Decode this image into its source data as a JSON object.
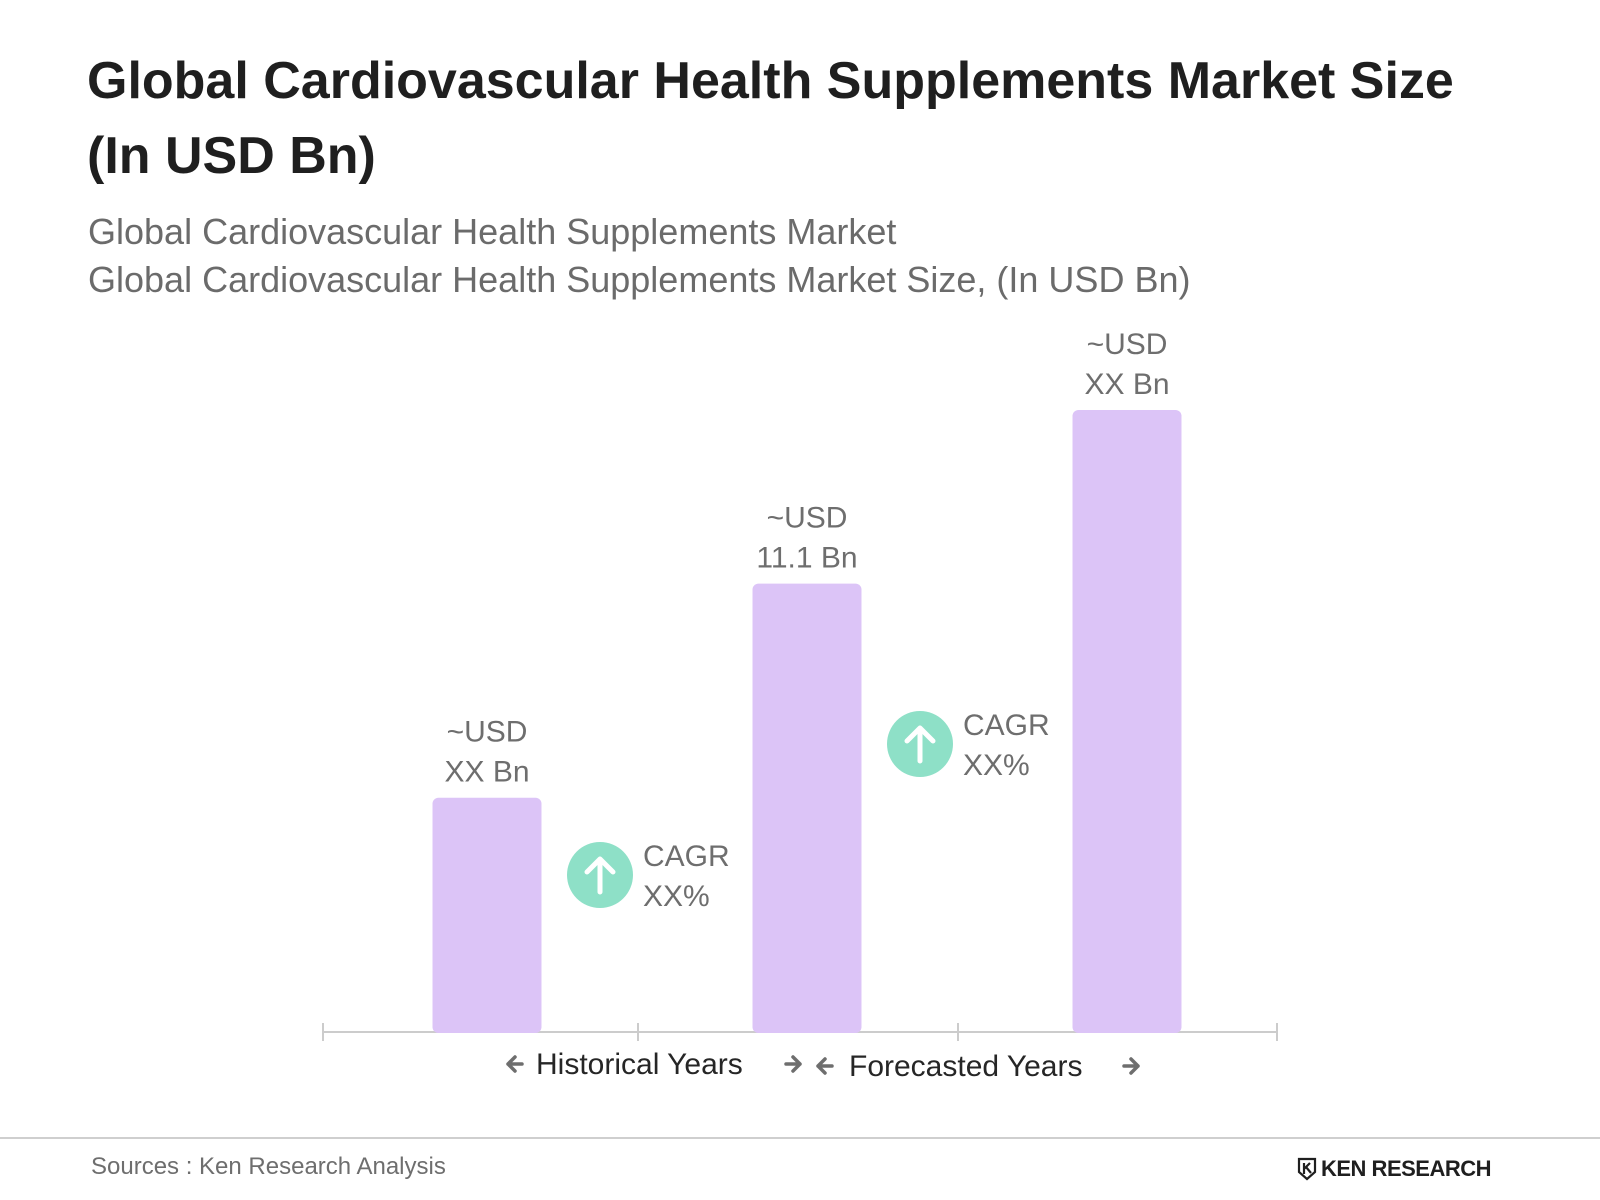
{
  "title": "Global Cardiovascular Health Supplements Market Size (In USD Bn)",
  "subtitle_1": "Global Cardiovascular Health Supplements Market",
  "subtitle_2": "Global Cardiovascular Health Supplements Market Size, (In USD Bn)",
  "chart_data": {
    "type": "bar",
    "categories": [
      "",
      "",
      ""
    ],
    "values": [
      5.8,
      11.1,
      15.4
    ],
    "bar_labels": [
      [
        "~USD",
        "XX Bn"
      ],
      [
        "~USD",
        "11.1 Bn"
      ],
      [
        "~USD",
        "XX Bn"
      ]
    ],
    "cagr_labels": [
      [
        "CAGR",
        "XX%"
      ],
      [
        "CAGR",
        "XX%"
      ]
    ],
    "period_labels": [
      "Historical Years",
      "Forecasted Years"
    ],
    "ylim": [
      0,
      15.4
    ],
    "grid": false,
    "colors": {
      "bar": "#dcc4f7",
      "cagr_circle": "#8ee0c7",
      "axis": "#cccccc",
      "label_text": "#6e6e6e",
      "period_text": "#262626",
      "arrow": "#6e6e6e"
    }
  },
  "source_text": "Sources : Ken Research Analysis",
  "brand_name": "KEN RESEARCH",
  "icons": {
    "cagr": "arrow-up-icon",
    "period_left": "arrow-left-icon",
    "period_right": "arrow-right-icon",
    "brand": "ken-research-logo-icon"
  }
}
